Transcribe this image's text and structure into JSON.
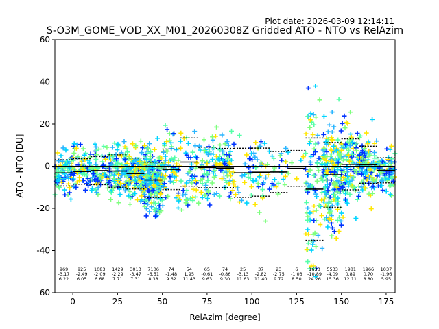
{
  "header": {
    "plot_date": "Plot date: 2026-03-09 12:14:11"
  },
  "chart_data": {
    "type": "scatter",
    "title": "S-O3M_GOME_VOD_XX_M01_20260308Z Gridded ATO - NTO vs RelAzim",
    "xlabel": "RelAzim [degree]",
    "ylabel": "ATO - NTO [DU]",
    "xlim": [
      -10,
      180
    ],
    "ylim": [
      -60,
      60
    ],
    "xticks": [
      0,
      25,
      50,
      75,
      100,
      125,
      150,
      175
    ],
    "yticks": [
      -60,
      -40,
      -20,
      0,
      20,
      40,
      60
    ],
    "zero_line": 0,
    "marker": "+",
    "bins": [
      {
        "x0": -10,
        "x1": 0,
        "mean": -3.17,
        "std": 6.22,
        "count": "969",
        "mean_label": "-3.17",
        "std_label": "6.22"
      },
      {
        "x0": 0,
        "x1": 10,
        "mean": -2.49,
        "std": 6.05,
        "count": "925",
        "mean_label": "-2.49",
        "std_label": "6.05"
      },
      {
        "x0": 10,
        "x1": 20,
        "mean": -2.09,
        "std": 6.68,
        "count": "1083",
        "mean_label": "-2.09",
        "std_label": "6.68"
      },
      {
        "x0": 20,
        "x1": 30,
        "mean": -2.29,
        "std": 7.71,
        "count": "1429",
        "mean_label": "-2.29",
        "std_label": "7.71"
      },
      {
        "x0": 30,
        "x1": 40,
        "mean": -3.47,
        "std": 7.31,
        "count": "3013",
        "mean_label": "-3.47",
        "std_label": "7.31"
      },
      {
        "x0": 40,
        "x1": 50,
        "mean": -6.51,
        "std": 8.38,
        "count": "7106",
        "mean_label": "-6.51",
        "std_label": "8.38"
      },
      {
        "x0": 50,
        "x1": 60,
        "mean": -1.48,
        "std": 9.62,
        "count": "74",
        "mean_label": "-1.48",
        "std_label": "9.62"
      },
      {
        "x0": 60,
        "x1": 70,
        "mean": 1.95,
        "std": 11.43,
        "count": "54",
        "mean_label": "1.95",
        "std_label": "11.43"
      },
      {
        "x0": 70,
        "x1": 80,
        "mean": -0.61,
        "std": 9.63,
        "count": "65",
        "mean_label": "-0.61",
        "std_label": "9.63"
      },
      {
        "x0": 80,
        "x1": 90,
        "mean": -0.86,
        "std": 9.3,
        "count": "74",
        "mean_label": "-0.86",
        "std_label": "9.30"
      },
      {
        "x0": 90,
        "x1": 100,
        "mean": -3.13,
        "std": 11.63,
        "count": "25",
        "mean_label": "-3.13",
        "std_label": "11.63"
      },
      {
        "x0": 100,
        "x1": 110,
        "mean": -2.82,
        "std": 11.4,
        "count": "37",
        "mean_label": "-2.82",
        "std_label": "11.40"
      },
      {
        "x0": 110,
        "x1": 120,
        "mean": -2.75,
        "std": 9.72,
        "count": "23",
        "mean_label": "-2.75",
        "std_label": "9.72"
      },
      {
        "x0": 120,
        "x1": 130,
        "mean": -1.03,
        "std": 8.5,
        "count": "6",
        "mean_label": "-1.03",
        "std_label": "8.50"
      },
      {
        "x0": 130,
        "x1": 140,
        "mean": -10.89,
        "std": 24.26,
        "count": "1633",
        "mean_label": "-10.89",
        "std_label": "24.26"
      },
      {
        "x0": 140,
        "x1": 150,
        "mean": -4.09,
        "std": 15.36,
        "count": "5533",
        "mean_label": "-4.09",
        "std_label": "15.36"
      },
      {
        "x0": 150,
        "x1": 160,
        "mean": 0.89,
        "std": 12.11,
        "count": "1981",
        "mean_label": "0.89",
        "std_label": "12.11"
      },
      {
        "x0": 160,
        "x1": 170,
        "mean": 0.7,
        "std": 8.8,
        "count": "1966",
        "mean_label": "0.70",
        "std_label": "8.80"
      },
      {
        "x0": 170,
        "x1": 180,
        "mean": -1.96,
        "std": 5.95,
        "count": "1037",
        "mean_label": "-1.96",
        "std_label": "5.95"
      }
    ],
    "colors": {
      "marker_palette": [
        "#00d4ff",
        "#55ffa8",
        "#7dff7d",
        "#2ab5ff",
        "#ffe600",
        "#0033ff"
      ],
      "mean_line": "#000000",
      "std_line": "#000000",
      "axes": "#000000"
    }
  }
}
